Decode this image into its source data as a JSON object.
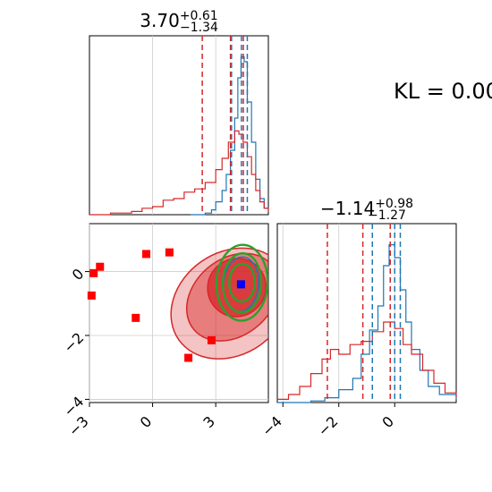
{
  "chart_data": [
    {
      "type": "histogram",
      "panel": "top-left marginal",
      "title": "3.70",
      "title_sup": "+0.61",
      "title_sub": "−1.34",
      "xlim": [
        -3,
        5.5
      ],
      "grid": true,
      "series": [
        {
          "color": "#1f77b4",
          "x": [
            1.8,
            2.2,
            2.5,
            2.8,
            3.0,
            3.3,
            3.5,
            3.7,
            3.9,
            4.05,
            4.2,
            4.35,
            4.5,
            4.7,
            4.9,
            5.1,
            5.3,
            5.5
          ],
          "values": [
            0,
            0,
            0.01,
            0.03,
            0.08,
            0.15,
            0.25,
            0.4,
            0.6,
            0.85,
            0.98,
            0.95,
            0.7,
            0.45,
            0.22,
            0.1,
            0.04,
            0.02
          ]
        },
        {
          "color": "#d62728",
          "x": [
            -3,
            -2,
            -1,
            -0.5,
            0,
            0.5,
            1,
            1.5,
            2,
            2.5,
            3,
            3.3,
            3.6,
            3.9,
            4.1,
            4.3,
            4.5,
            4.7,
            4.9,
            5.1,
            5.3,
            5.5
          ],
          "values": [
            0,
            0.01,
            0.02,
            0.04,
            0.05,
            0.09,
            0.1,
            0.14,
            0.16,
            0.2,
            0.28,
            0.35,
            0.45,
            0.52,
            0.5,
            0.45,
            0.36,
            0.25,
            0.15,
            0.08,
            0.04,
            0.02
          ]
        }
      ],
      "quantile_lines": [
        {
          "x": 2.36,
          "color": "#d62728"
        },
        {
          "x": 3.7,
          "color": "#d62728"
        },
        {
          "x": 4.31,
          "color": "#d62728"
        },
        {
          "x": 3.75,
          "color": "#1f77b4"
        },
        {
          "x": 4.22,
          "color": "#1f77b4"
        },
        {
          "x": 4.5,
          "color": "#1f77b4"
        }
      ]
    },
    {
      "type": "scatter",
      "panel": "bottom-left joint",
      "xlim": [
        -3,
        5.5
      ],
      "ylim": [
        -4.1,
        1.5
      ],
      "xticks": [
        "−3",
        "0",
        "3"
      ],
      "xtick_values": [
        -3,
        0,
        3
      ],
      "yticks": [
        "−4",
        "−2",
        "0"
      ],
      "ytick_values": [
        -4,
        -2,
        0
      ],
      "grid": true,
      "red_markers": [
        [
          -2.8,
          -0.05
        ],
        [
          -2.5,
          0.15
        ],
        [
          -2.9,
          -0.75
        ],
        [
          -0.8,
          -1.45
        ],
        [
          -0.3,
          0.55
        ],
        [
          0.8,
          0.6
        ],
        [
          1.7,
          -2.7
        ],
        [
          2.8,
          -2.15
        ]
      ],
      "blue_marker": [
        4.2,
        -0.4
      ],
      "contour_series": [
        {
          "color": "#d62728",
          "center": [
            3.7,
            -1.0
          ],
          "radii": [
            3.0,
            1.6
          ],
          "angle": -35
        },
        {
          "color": "#d62728",
          "center": [
            3.8,
            -0.8
          ],
          "radii": [
            2.4,
            1.2
          ],
          "angle": -40
        },
        {
          "color": "#d62728",
          "center": [
            4.0,
            -0.5
          ],
          "radii": [
            1.4,
            0.9
          ],
          "angle": -45
        },
        {
          "color": "#1f77b4",
          "center": [
            4.2,
            -0.4
          ],
          "radii": [
            1.3,
            0.55
          ],
          "angle": -85
        },
        {
          "color": "#2ca02c",
          "center": [
            4.25,
            -0.35
          ],
          "radii": [
            1.8,
            0.8
          ],
          "angle": -88
        },
        {
          "color": "#2ca02c",
          "center": [
            4.25,
            -0.35
          ],
          "radii": [
            1.4,
            0.6
          ],
          "angle": -88
        },
        {
          "color": "#2ca02c",
          "center": [
            4.25,
            -0.35
          ],
          "radii": [
            0.9,
            0.4
          ],
          "angle": -88
        }
      ]
    },
    {
      "type": "histogram",
      "panel": "bottom-right marginal",
      "title": "−1.14",
      "title_sup": "+0.98",
      "title_sub": "−1.27",
      "xlim": [
        -4.2,
        2.2
      ],
      "xticks": [
        "−4",
        "−2",
        "0"
      ],
      "xtick_values": [
        -4,
        -2,
        0
      ],
      "grid": true,
      "series": [
        {
          "color": "#1f77b4",
          "x": [
            -4.2,
            -3.5,
            -3,
            -2.5,
            -2,
            -1.5,
            -1.2,
            -0.9,
            -0.6,
            -0.4,
            -0.2,
            0,
            0.2,
            0.4,
            0.6,
            0.9,
            1.2,
            1.6,
            2.2
          ],
          "values": [
            0,
            0,
            0.01,
            0.03,
            0.08,
            0.15,
            0.3,
            0.45,
            0.6,
            0.85,
            0.98,
            0.9,
            0.7,
            0.5,
            0.33,
            0.2,
            0.1,
            0.05,
            0.02
          ]
        },
        {
          "color": "#d62728",
          "x": [
            -4.2,
            -3.8,
            -3.4,
            -3,
            -2.6,
            -2.3,
            -2,
            -1.6,
            -1.2,
            -0.8,
            -0.4,
            0,
            0.3,
            0.6,
            1,
            1.4,
            1.8,
            2.2
          ],
          "values": [
            0.02,
            0.05,
            0.1,
            0.18,
            0.27,
            0.33,
            0.3,
            0.36,
            0.38,
            0.44,
            0.5,
            0.46,
            0.36,
            0.3,
            0.2,
            0.12,
            0.06,
            0.03
          ]
        }
      ],
      "quantile_lines": [
        {
          "x": -2.41,
          "color": "#d62728"
        },
        {
          "x": -1.14,
          "color": "#d62728"
        },
        {
          "x": -0.16,
          "color": "#d62728"
        },
        {
          "x": -0.8,
          "color": "#1f77b4"
        },
        {
          "x": 0.0,
          "color": "#1f77b4"
        },
        {
          "x": 0.2,
          "color": "#1f77b4"
        }
      ]
    }
  ],
  "annotation": {
    "kl_text": "KL = 0.00"
  },
  "colors": {
    "red": "#d62728",
    "blue": "#1f77b4",
    "green": "#2ca02c",
    "grid": "#cccccc",
    "square_red": "#ff0000",
    "square_blue": "#0000ff"
  }
}
